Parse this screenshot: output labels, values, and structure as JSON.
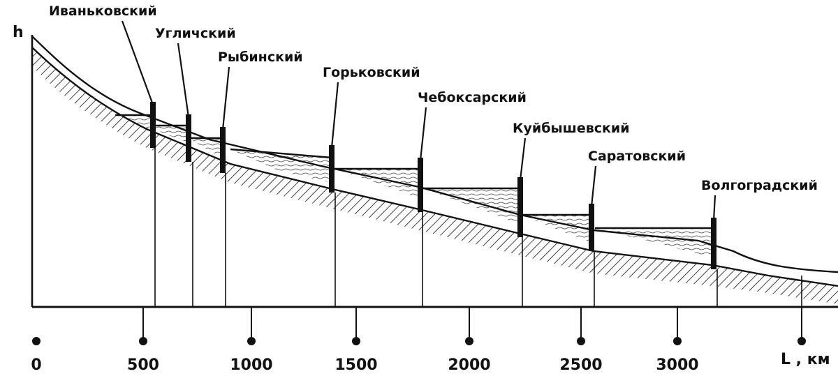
{
  "diagram": {
    "y_axis_label": "h",
    "x_axis_label": "L , км",
    "x_ticks": [
      "0",
      "500",
      "1000",
      "1500",
      "2000",
      "2500",
      "3000"
    ],
    "dams": [
      {
        "name": "Иваньковский"
      },
      {
        "name": "Угличский"
      },
      {
        "name": "Рыбинский"
      },
      {
        "name": "Горьковский"
      },
      {
        "name": "Чебоксарский"
      },
      {
        "name": "Куйбышевский"
      },
      {
        "name": "Саратовский"
      },
      {
        "name": "Волгоградский"
      }
    ]
  }
}
